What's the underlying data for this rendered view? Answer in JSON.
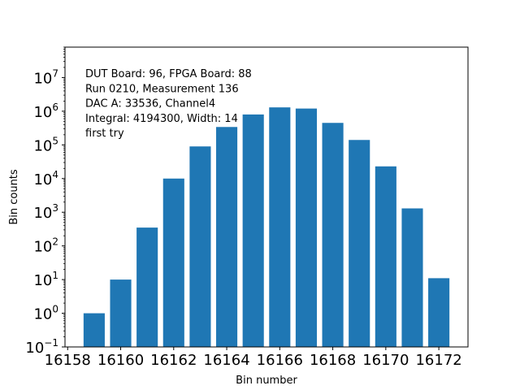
{
  "chart_data": {
    "type": "bar",
    "x": [
      16159,
      16160,
      16161,
      16162,
      16163,
      16164,
      16165,
      16166,
      16167,
      16168,
      16169,
      16170,
      16171,
      16172
    ],
    "values": [
      1,
      10,
      350,
      10000,
      90000,
      340000,
      800000,
      1300000,
      1200000,
      450000,
      140000,
      23000,
      1300,
      11
    ],
    "xlabel": "Bin number",
    "ylabel": "Bin counts",
    "yscale": "log",
    "ylim": [
      0.1,
      80000000
    ],
    "xlim": [
      16157.9,
      16173.1
    ],
    "xticks": [
      16158,
      16160,
      16162,
      16164,
      16166,
      16168,
      16170,
      16172
    ],
    "yticks": [
      {
        "exp": -1,
        "label_base": "10",
        "label_exp": "−1"
      },
      {
        "exp": 0,
        "label_base": "10",
        "label_exp": "0"
      },
      {
        "exp": 1,
        "label_base": "10",
        "label_exp": "1"
      },
      {
        "exp": 2,
        "label_base": "10",
        "label_exp": "2"
      },
      {
        "exp": 3,
        "label_base": "10",
        "label_exp": "3"
      },
      {
        "exp": 4,
        "label_base": "10",
        "label_exp": "4"
      },
      {
        "exp": 5,
        "label_base": "10",
        "label_exp": "5"
      },
      {
        "exp": 6,
        "label_base": "10",
        "label_exp": "6"
      },
      {
        "exp": 7,
        "label_base": "10",
        "label_exp": "7"
      }
    ],
    "bar_color": "#1f77b4",
    "grid": false,
    "annotation_lines": [
      "DUT Board: 96, FPGA Board: 88",
      "Run 0210, Measurement 136",
      "DAC A: 33536, Channel4",
      "Integral: 4194300, Width: 14",
      "first try"
    ]
  }
}
